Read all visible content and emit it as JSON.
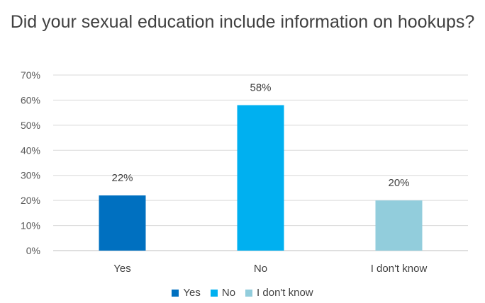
{
  "chart_data": {
    "type": "bar",
    "title": "Did your sexual education include information on hookups?",
    "categories": [
      "Yes",
      "No",
      "I don't know"
    ],
    "values": [
      22,
      58,
      20
    ],
    "data_labels": [
      "22%",
      "58%",
      "20%"
    ],
    "colors": [
      "#0070c0",
      "#00b0f0",
      "#92cddc"
    ],
    "ylim": [
      0,
      70
    ],
    "yticks": [
      "0%",
      "10%",
      "20%",
      "30%",
      "40%",
      "50%",
      "60%",
      "70%"
    ],
    "grid": true,
    "legend": {
      "position": "bottom",
      "entries": [
        "Yes",
        "No",
        "I don't know"
      ]
    }
  }
}
